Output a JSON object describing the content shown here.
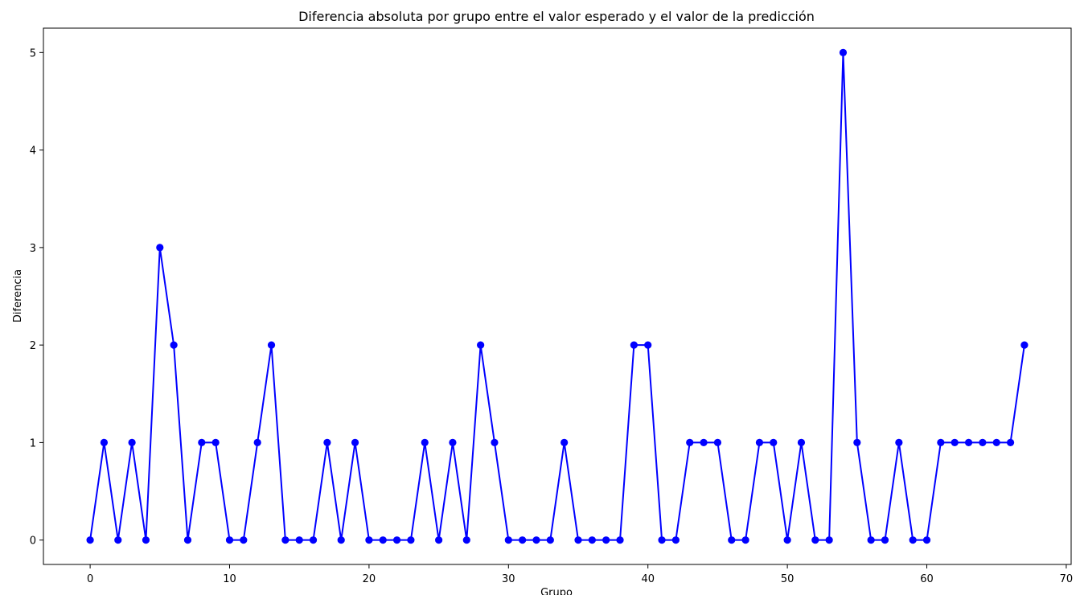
{
  "chart_data": {
    "type": "line",
    "title": "Diferencia absoluta por grupo entre el valor esperado y el valor de la predicción",
    "xlabel": "Grupo",
    "ylabel": "Diferencia",
    "xlim": [
      -3.35,
      70.35
    ],
    "ylim": [
      -0.25,
      5.25
    ],
    "xticks": [
      0,
      10,
      20,
      30,
      40,
      50,
      60,
      70
    ],
    "yticks": [
      0,
      1,
      2,
      3,
      4,
      5
    ],
    "grid": false,
    "marker": "circle",
    "series": [
      {
        "color": "#0000ff",
        "x": [
          0,
          1,
          2,
          3,
          4,
          5,
          6,
          7,
          8,
          9,
          10,
          11,
          12,
          13,
          14,
          15,
          16,
          17,
          18,
          19,
          20,
          21,
          22,
          23,
          24,
          25,
          26,
          27,
          28,
          29,
          30,
          31,
          32,
          33,
          34,
          35,
          36,
          37,
          38,
          39,
          40,
          41,
          42,
          43,
          44,
          45,
          46,
          47,
          48,
          49,
          50,
          51,
          52,
          53,
          54,
          55,
          56,
          57,
          58,
          59,
          60,
          61,
          62,
          63,
          64,
          65,
          66,
          67
        ],
        "values": [
          0,
          1,
          0,
          1,
          0,
          3,
          2,
          0,
          1,
          1,
          0,
          0,
          1,
          2,
          0,
          0,
          0,
          1,
          0,
          1,
          0,
          0,
          0,
          0,
          1,
          0,
          1,
          0,
          2,
          1,
          0,
          0,
          0,
          0,
          1,
          0,
          0,
          0,
          0,
          2,
          2,
          0,
          0,
          1,
          1,
          1,
          0,
          0,
          1,
          1,
          0,
          1,
          0,
          0,
          5,
          1,
          0,
          0,
          1,
          0,
          0,
          1,
          1,
          1,
          1,
          1,
          1,
          2
        ]
      }
    ]
  }
}
